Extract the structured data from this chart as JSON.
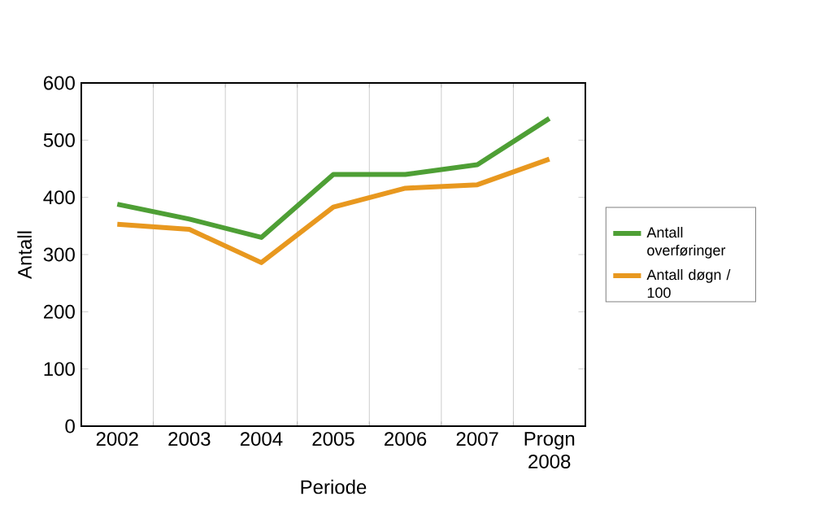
{
  "chart_data": {
    "type": "line",
    "xlabel": "Periode",
    "ylabel": "Antall",
    "categories": [
      "2002",
      "2003",
      "2004",
      "2005",
      "2006",
      "2007",
      "Progn 2008"
    ],
    "series": [
      {
        "name": "Antall overføringer",
        "color": "#4e9f35",
        "values": [
          388,
          362,
          330,
          440,
          440,
          457,
          538
        ]
      },
      {
        "name": "Antall døgn / 100",
        "color": "#e8981f",
        "values": [
          353,
          344,
          286,
          383,
          416,
          422,
          467
        ]
      }
    ],
    "ylim": [
      0,
      600
    ],
    "yticks": [
      0,
      100,
      200,
      300,
      400,
      500,
      600
    ],
    "grid": "x",
    "legend": "right",
    "marker": "none",
    "line_style": "solid"
  }
}
